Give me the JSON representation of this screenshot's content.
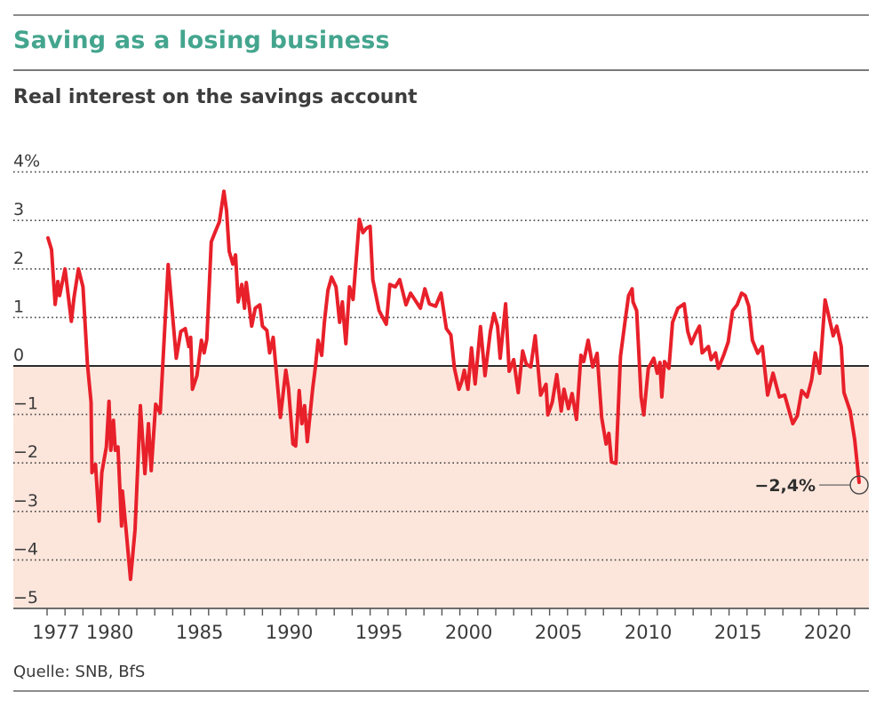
{
  "header": {
    "title": "Saving as a losing business",
    "subtitle": "Real interest on the savings account"
  },
  "footer": {
    "source": "Quelle: SNB, BfS"
  },
  "colors": {
    "title": "#44a58e",
    "line": "#e8202a",
    "negative_fill": "#fce6dc",
    "text": "#3a3a3a"
  },
  "chart_data": {
    "type": "line",
    "title": "Saving as a losing business",
    "subtitle": "Real interest on the savings account",
    "xlabel": "",
    "ylabel": "",
    "unit": "%",
    "ylim": [
      -5,
      4
    ],
    "xlim": [
      1976.5,
      2022.8
    ],
    "grid": "horizontal dotted",
    "negative_region_shaded": true,
    "y_ticks": [
      4,
      3,
      2,
      1,
      0,
      -1,
      -2,
      -3,
      -4,
      -5
    ],
    "y_tick_labels": [
      "4%",
      "3",
      "2",
      "1",
      "0",
      "−1",
      "−2",
      "−3",
      "−4",
      "−5"
    ],
    "x_minor_ticks": {
      "from": 1977,
      "to": 2022,
      "step": 1
    },
    "x_tick_labels": [
      "1977",
      "1980",
      "1985",
      "1990",
      "1995",
      "2000",
      "2005",
      "2010",
      "2015",
      "2020"
    ],
    "x_tick_label_years": [
      1977,
      1980,
      1985,
      1990,
      1995,
      2000,
      2005,
      2010,
      2015,
      2020
    ],
    "annotation": {
      "text": "−2,4%",
      "x": 2022.25,
      "y": -2.4,
      "marker": "circle",
      "position": "left"
    },
    "series": [
      {
        "name": "Real interest on the savings account",
        "x": [
          1977.05,
          1977.25,
          1977.45,
          1977.6,
          1977.7,
          1978.0,
          1978.35,
          1978.5,
          1978.75,
          1979.0,
          1979.25,
          1979.45,
          1979.5,
          1979.7,
          1979.9,
          1980.05,
          1980.3,
          1980.45,
          1980.55,
          1980.7,
          1980.8,
          1980.95,
          1981.15,
          1981.2,
          1981.4,
          1981.65,
          1981.9,
          1982.2,
          1982.45,
          1982.65,
          1982.8,
          1983.05,
          1983.3,
          1983.75,
          1984.2,
          1984.45,
          1984.7,
          1984.9,
          1985.0,
          1985.1,
          1985.35,
          1985.6,
          1985.75,
          1985.9,
          1986.15,
          1986.35,
          1986.6,
          1986.85,
          1987.0,
          1987.15,
          1987.35,
          1987.5,
          1987.65,
          1987.85,
          1988.0,
          1988.1,
          1988.4,
          1988.6,
          1988.85,
          1989.0,
          1989.25,
          1989.4,
          1989.6,
          1990.0,
          1990.3,
          1990.45,
          1990.7,
          1990.85,
          1991.05,
          1991.2,
          1991.35,
          1991.5,
          1991.8,
          1991.95,
          1992.1,
          1992.3,
          1992.45,
          1992.65,
          1992.85,
          1993.1,
          1993.3,
          1993.45,
          1993.65,
          1993.85,
          1994.05,
          1994.4,
          1994.6,
          1994.8,
          1995.0,
          1995.15,
          1995.5,
          1995.9,
          1996.1,
          1996.4,
          1996.65,
          1997.0,
          1997.25,
          1997.5,
          1997.8,
          1998.05,
          1998.3,
          1998.65,
          1998.95,
          1999.25,
          1999.5,
          1999.7,
          1999.95,
          2000.1,
          2000.25,
          2000.45,
          2000.65,
          2000.85,
          2001.15,
          2001.4,
          2001.7,
          2001.9,
          2002.1,
          2002.25,
          2002.55,
          2002.75,
          2003.0,
          2003.25,
          2003.5,
          2003.7,
          2003.95,
          2004.2,
          2004.5,
          2004.8,
          2004.9,
          2005.15,
          2005.4,
          2005.65,
          2005.8,
          2006.05,
          2006.25,
          2006.5,
          2006.75,
          2006.9,
          2007.15,
          2007.4,
          2007.65,
          2007.9,
          2008.15,
          2008.3,
          2008.45,
          2008.7,
          2008.95,
          2009.2,
          2009.4,
          2009.6,
          2009.65,
          2009.85,
          2010.1,
          2010.25,
          2010.5,
          2010.8,
          2011.0,
          2011.15,
          2011.25,
          2011.4,
          2011.65,
          2011.85,
          2012.15,
          2012.5,
          2012.7,
          2012.9,
          2013.1,
          2013.35,
          2013.5,
          2013.85,
          2014.0,
          2014.25,
          2014.4,
          2014.7,
          2014.95,
          2015.2,
          2015.45,
          2015.7,
          2015.9,
          2016.1,
          2016.3,
          2016.6,
          2016.85,
          2017.15,
          2017.45,
          2017.8,
          2018.1,
          2018.55,
          2018.8,
          2019.05,
          2019.35,
          2019.6,
          2019.8,
          2020.05,
          2020.35,
          2020.55,
          2020.8,
          2021.0,
          2021.25,
          2021.4,
          2021.75,
          2022.0,
          2022.25
        ],
        "values": [
          2.64,
          2.4,
          1.27,
          1.74,
          1.45,
          2.0,
          0.92,
          1.41,
          2.0,
          1.63,
          0.04,
          -0.75,
          -2.2,
          -2.03,
          -3.2,
          -2.2,
          -1.67,
          -0.73,
          -1.74,
          -1.12,
          -1.74,
          -1.67,
          -3.3,
          -2.58,
          -3.38,
          -4.4,
          -3.38,
          -0.82,
          -2.22,
          -1.19,
          -2.16,
          -0.79,
          -0.97,
          2.09,
          0.16,
          0.71,
          0.77,
          0.4,
          0.59,
          -0.48,
          -0.2,
          0.53,
          0.27,
          0.55,
          2.56,
          2.75,
          2.97,
          3.6,
          3.2,
          2.36,
          2.1,
          2.29,
          1.32,
          1.68,
          1.19,
          1.72,
          0.82,
          1.19,
          1.26,
          0.82,
          0.73,
          0.27,
          0.59,
          -1.06,
          -0.09,
          -0.46,
          -1.61,
          -1.65,
          -0.51,
          -1.19,
          -0.82,
          -1.56,
          -0.46,
          -0.02,
          0.53,
          0.22,
          0.9,
          1.56,
          1.83,
          1.63,
          0.9,
          1.32,
          0.46,
          1.63,
          1.37,
          3.02,
          2.75,
          2.84,
          2.88,
          1.78,
          1.14,
          0.86,
          1.68,
          1.63,
          1.78,
          1.26,
          1.5,
          1.36,
          1.19,
          1.59,
          1.28,
          1.23,
          1.5,
          0.77,
          0.64,
          -0.05,
          -0.48,
          -0.33,
          -0.09,
          -0.48,
          0.37,
          -0.37,
          0.81,
          -0.2,
          0.71,
          1.08,
          0.82,
          0.16,
          1.28,
          -0.11,
          0.13,
          -0.55,
          0.31,
          0.04,
          -0.02,
          0.62,
          -0.6,
          -0.38,
          -1.01,
          -0.75,
          -0.18,
          -0.93,
          -0.48,
          -0.88,
          -0.57,
          -1.1,
          0.22,
          0.09,
          0.53,
          -0.02,
          0.26,
          -1.06,
          -1.61,
          -1.39,
          -1.98,
          -2.01,
          0.2,
          0.9,
          1.45,
          1.59,
          1.32,
          1.14,
          -0.64,
          -1.01,
          -0.05,
          0.16,
          -0.15,
          0.07,
          -0.64,
          0.09,
          -0.05,
          0.9,
          1.19,
          1.28,
          0.71,
          0.46,
          0.64,
          0.82,
          0.27,
          0.4,
          0.13,
          0.27,
          -0.05,
          0.22,
          0.49,
          1.14,
          1.26,
          1.5,
          1.45,
          1.23,
          0.53,
          0.26,
          0.4,
          -0.6,
          -0.15,
          -0.64,
          -0.6,
          -1.19,
          -1.03,
          -0.51,
          -0.64,
          -0.29,
          0.27,
          -0.15,
          1.36,
          1.04,
          0.62,
          0.82,
          0.4,
          -0.55,
          -0.93,
          -1.52,
          -2.4
        ]
      }
    ]
  }
}
